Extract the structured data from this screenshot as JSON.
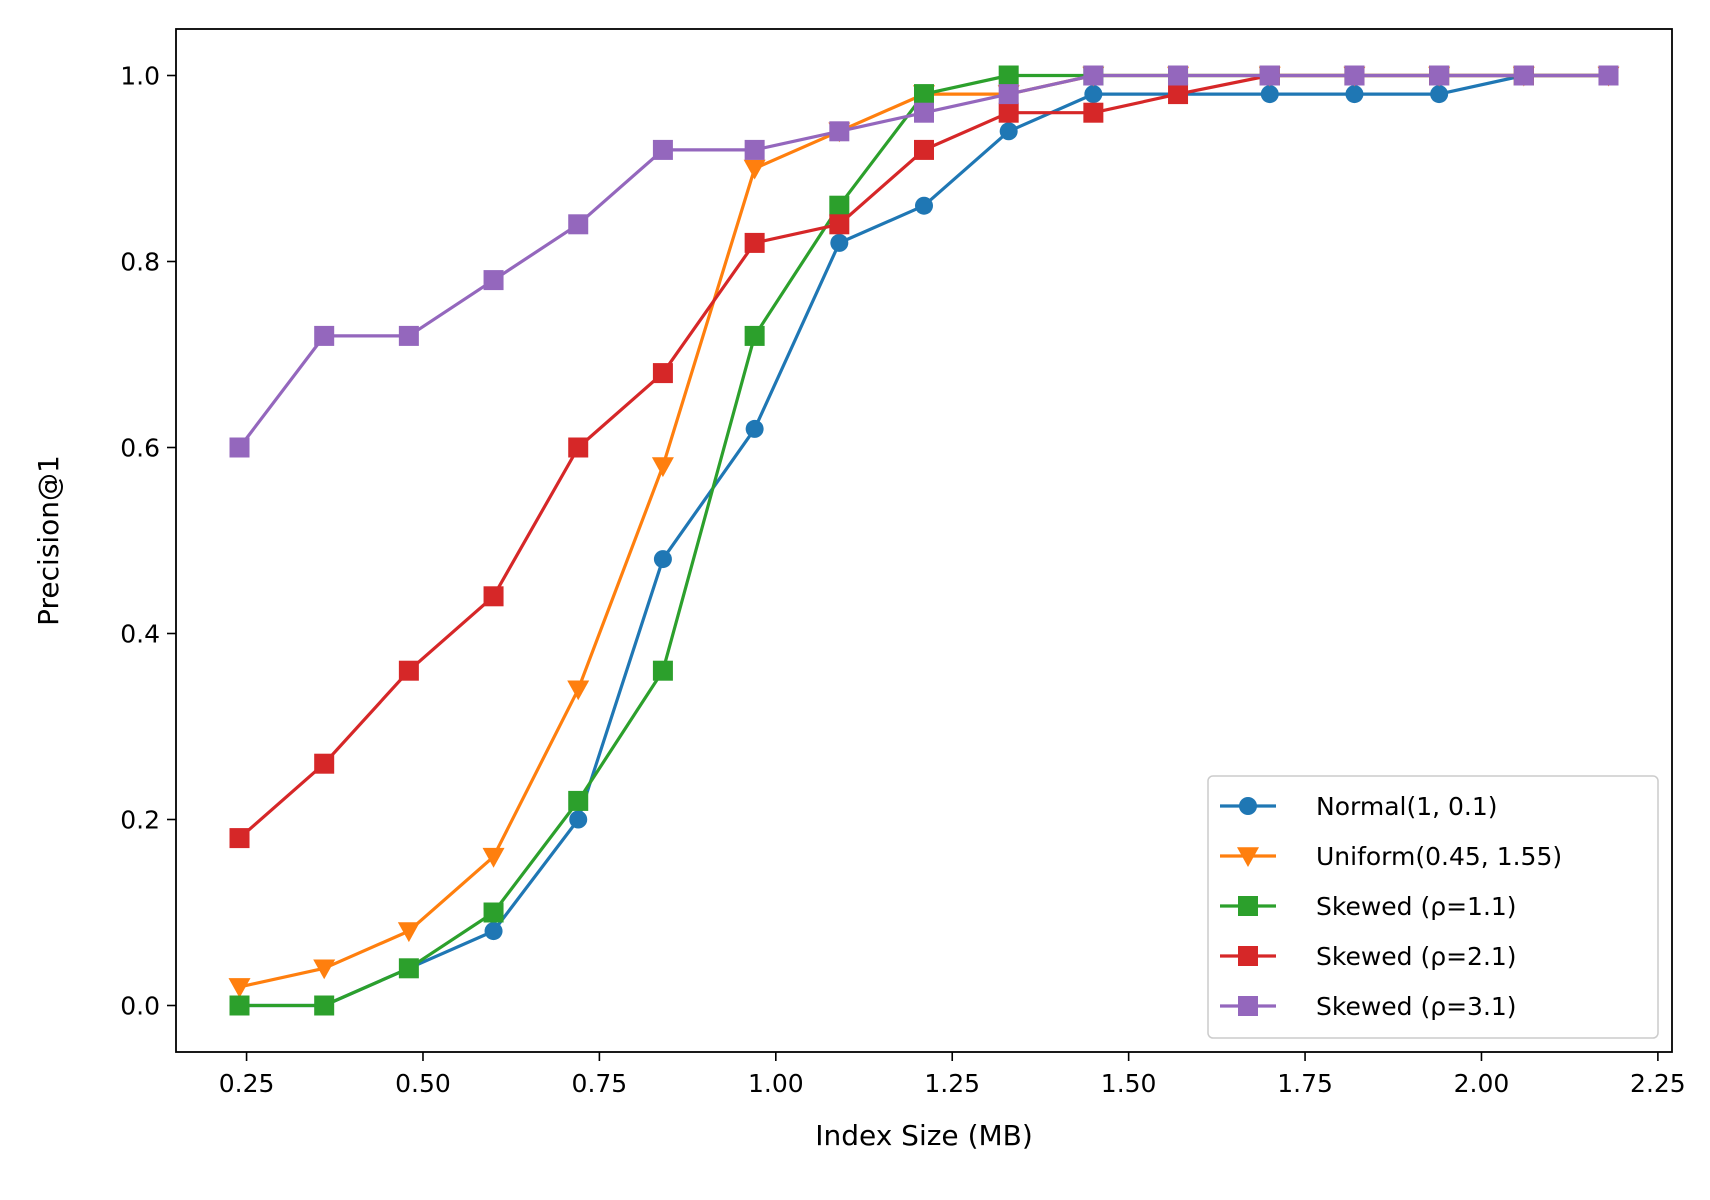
{
  "chart_data": {
    "type": "line",
    "title": "",
    "xlabel": "Index Size (MB)",
    "ylabel": "Precision@1",
    "xlim": [
      0.15,
      2.27
    ],
    "ylim": [
      -0.05,
      1.05
    ],
    "x_ticks": [
      "0.25",
      "0.50",
      "0.75",
      "1.00",
      "1.25",
      "1.50",
      "1.75",
      "2.00",
      "2.25"
    ],
    "y_ticks": [
      "0.0",
      "0.2",
      "0.4",
      "0.6",
      "0.8",
      "1.0"
    ],
    "grid": false,
    "legend_position": "lower-right",
    "x": [
      0.24,
      0.36,
      0.48,
      0.6,
      0.72,
      0.84,
      0.97,
      1.09,
      1.21,
      1.33,
      1.45,
      1.57,
      1.7,
      1.82,
      1.94,
      2.06,
      2.18
    ],
    "series": [
      {
        "name": "Normal(1, 0.1)",
        "color": "#1f77b4",
        "marker": "circle",
        "values": [
          0.0,
          0.0,
          0.04,
          0.08,
          0.2,
          0.48,
          0.62,
          0.82,
          0.86,
          0.94,
          0.98,
          0.98,
          0.98,
          0.98,
          0.98,
          1.0,
          1.0
        ]
      },
      {
        "name": "Uniform(0.45, 1.55)",
        "color": "#ff7f0e",
        "marker": "triangle-down",
        "values": [
          0.02,
          0.04,
          0.08,
          0.16,
          0.34,
          0.58,
          0.9,
          0.94,
          0.98,
          0.98,
          1.0,
          1.0,
          1.0,
          1.0,
          1.0,
          1.0,
          1.0
        ]
      },
      {
        "name": "Skewed (ρ=1.1)",
        "color": "#2ca02c",
        "marker": "square",
        "values": [
          0.0,
          0.0,
          0.04,
          0.1,
          0.22,
          0.36,
          0.72,
          0.86,
          0.98,
          1.0,
          1.0,
          1.0,
          1.0,
          1.0,
          1.0,
          1.0,
          1.0
        ]
      },
      {
        "name": "Skewed (ρ=2.1)",
        "color": "#d62728",
        "marker": "square",
        "values": [
          0.18,
          0.26,
          0.36,
          0.44,
          0.6,
          0.68,
          0.82,
          0.84,
          0.92,
          0.96,
          0.96,
          0.98,
          1.0,
          1.0,
          1.0,
          1.0,
          1.0
        ]
      },
      {
        "name": "Skewed (ρ=3.1)",
        "color": "#9467bd",
        "marker": "square",
        "values": [
          0.6,
          0.72,
          0.72,
          0.78,
          0.84,
          0.92,
          0.92,
          0.94,
          0.96,
          0.98,
          1.0,
          1.0,
          1.0,
          1.0,
          1.0,
          1.0,
          1.0
        ]
      }
    ]
  }
}
